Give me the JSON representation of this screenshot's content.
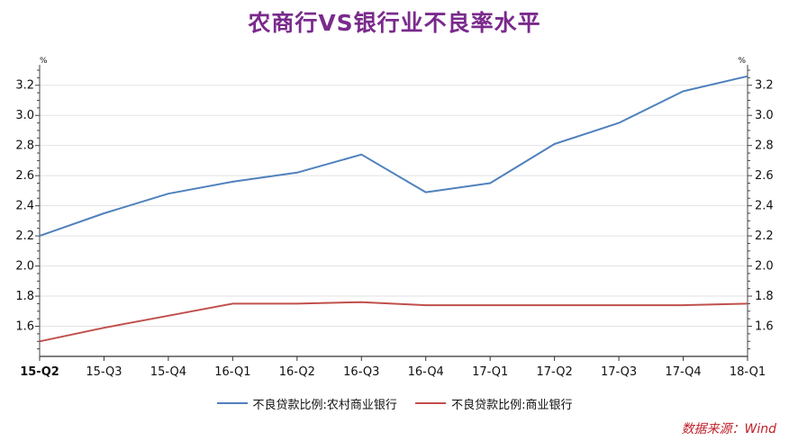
{
  "chart_data": {
    "type": "line",
    "title": "农商行VS银行业不良率水平",
    "categories": [
      "15-Q2",
      "15-Q3",
      "15-Q4",
      "16-Q1",
      "16-Q2",
      "16-Q3",
      "16-Q4",
      "17-Q1",
      "17-Q2",
      "17-Q3",
      "17-Q4",
      "18-Q1"
    ],
    "series": [
      {
        "name": "不良贷款比例:农村商业银行",
        "color": "#4f81bd",
        "values": [
          2.2,
          2.35,
          2.48,
          2.56,
          2.62,
          2.74,
          2.49,
          2.55,
          2.81,
          2.95,
          3.16,
          3.26
        ]
      },
      {
        "name": "不良贷款比例:商业银行",
        "color": "#c0504d",
        "values": [
          1.5,
          1.59,
          1.67,
          1.75,
          1.75,
          1.76,
          1.74,
          1.74,
          1.74,
          1.74,
          1.74,
          1.75
        ]
      }
    ],
    "ylim": [
      1.4,
      3.3
    ],
    "yticks": [
      "1.6",
      "1.8",
      "2.0",
      "2.2",
      "2.4",
      "2.6",
      "2.8",
      "3.0",
      "3.2"
    ],
    "yunit_left": "%",
    "yunit_right": "%",
    "grid": true,
    "legend": "bottom-center"
  },
  "source_text": "数据来源：Wind"
}
